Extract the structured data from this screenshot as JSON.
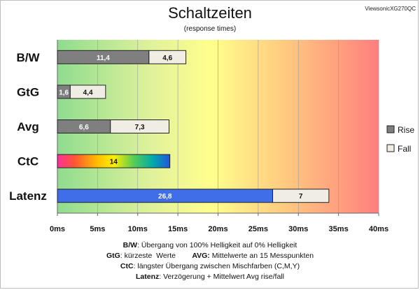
{
  "header": {
    "title": "Schaltzeiten",
    "subtitle": "(response times)",
    "brand": "ViewsonicXG270QC"
  },
  "chart_data": {
    "type": "bar",
    "orientation": "horizontal",
    "stacked": true,
    "categories": [
      "B/W",
      "GtG",
      "Avg",
      "CtC",
      "Latenz"
    ],
    "series": [
      {
        "name": "Rise",
        "values": [
          11.4,
          1.6,
          6.6,
          null,
          null
        ],
        "color": "#7f7f7f"
      },
      {
        "name": "Fall",
        "values": [
          4.6,
          4.4,
          7.3,
          null,
          7
        ],
        "color": "#f0ede4"
      }
    ],
    "extra_bars": {
      "CtC": {
        "value": 14,
        "label": "14",
        "fill": "rainbow-gradient"
      },
      "Latenz": {
        "value": 26.8,
        "label": "26,8",
        "color": "#3f6ee8"
      }
    },
    "data_labels": {
      "Rise": [
        "11,4",
        "1,6",
        "6,6",
        "",
        ""
      ],
      "Fall": [
        "4,6",
        "4,4",
        "7,3",
        "",
        "7"
      ]
    },
    "x_ticks": [
      "0ms",
      "5ms",
      "10ms",
      "15ms",
      "20ms",
      "25ms",
      "30ms",
      "35ms",
      "40ms"
    ],
    "xlim": [
      0,
      40
    ],
    "legend": {
      "placement": "right",
      "items": [
        "Rise",
        "Fall"
      ]
    },
    "background": "green-yellow-red gradient",
    "grid": true
  },
  "notes": [
    {
      "label": "B/W",
      "text": ":  Übergang von 100% Helligkeit auf 0% Helligkeit"
    },
    {
      "label": "GtG",
      "text": ": kürzeste  Werte        ",
      "label2": "AVG:",
      "text2": " Mittelwerte  an 15 Messpunkten"
    },
    {
      "label": "CtC",
      "text": ": längster Übergang  zwischen Mischfarben  (C,M,Y)"
    },
    {
      "label": "Latenz",
      "text": ": Verzögerung  + Mittelwert  Avg rise/fall"
    }
  ],
  "colors": {
    "rise": "#7f7f7f",
    "fall": "#f0ede4",
    "latency": "#3f6ee8",
    "axis": "#666666"
  }
}
